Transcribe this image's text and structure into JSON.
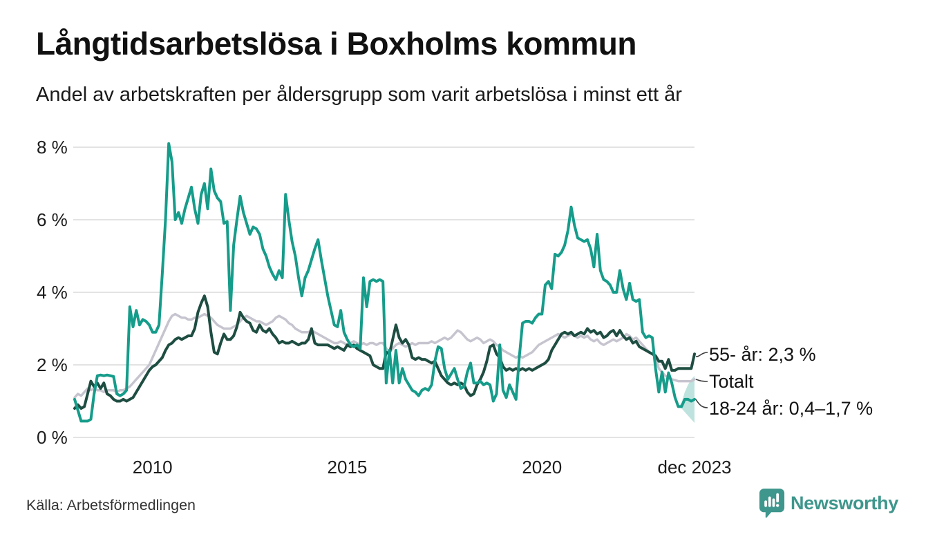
{
  "chart_data": {
    "type": "line",
    "title": "Långtidsarbetslösa i Boxholms kommun",
    "subtitle": "Andel av arbetskraften per åldersgrupp som varit arbetslösa i minst ett år",
    "unit": "%",
    "frequency": "monthly",
    "x_start_year": 2008,
    "x_end_label": "dec 2023",
    "ylim": [
      0,
      8.4
    ],
    "grid": true,
    "grid_color": "#e3e3e3",
    "y_ticks": [
      {
        "label": "8 %",
        "value": 8
      },
      {
        "label": "6 %",
        "value": 6
      },
      {
        "label": "4 %",
        "value": 4
      },
      {
        "label": "2 %",
        "value": 2
      },
      {
        "label": "0 %",
        "value": 0
      }
    ],
    "x_ticks": [
      {
        "label": "2010",
        "year": 2010
      },
      {
        "label": "2015",
        "year": 2015
      },
      {
        "label": "2020",
        "year": 2020
      },
      {
        "label": "dec 2023",
        "year": 2023.917
      }
    ],
    "series": [
      {
        "name": "Totalt",
        "color": "#C6C4CE",
        "width": 3.5,
        "values": [
          1.1,
          1.2,
          1.15,
          1.25,
          1.35,
          1.3,
          1.35,
          1.3,
          1.3,
          1.25,
          1.3,
          1.3,
          1.3,
          1.25,
          1.3,
          1.3,
          1.35,
          1.4,
          1.5,
          1.6,
          1.7,
          1.8,
          1.9,
          2.0,
          2.2,
          2.4,
          2.6,
          2.8,
          3.0,
          3.2,
          3.35,
          3.4,
          3.35,
          3.3,
          3.3,
          3.25,
          3.25,
          3.3,
          3.3,
          3.35,
          3.4,
          3.35,
          3.3,
          3.2,
          3.1,
          3.05,
          3.0,
          3.0,
          3.0,
          3.05,
          3.1,
          3.2,
          3.3,
          3.35,
          3.3,
          3.25,
          3.2,
          3.2,
          3.15,
          3.1,
          3.15,
          3.2,
          3.3,
          3.35,
          3.3,
          3.25,
          3.15,
          3.1,
          3.0,
          2.95,
          2.9,
          2.9,
          2.9,
          2.95,
          2.9,
          2.85,
          2.8,
          2.75,
          2.7,
          2.65,
          2.6,
          2.6,
          2.65,
          2.6,
          2.55,
          2.6,
          2.65,
          2.6,
          2.55,
          2.6,
          2.55,
          2.6,
          2.6,
          2.55,
          2.6,
          2.6,
          2.45,
          2.35,
          2.45,
          2.55,
          2.6,
          2.55,
          2.5,
          2.55,
          2.6,
          2.55,
          2.6,
          2.6,
          2.6,
          2.6,
          2.65,
          2.6,
          2.65,
          2.7,
          2.75,
          2.7,
          2.75,
          2.85,
          2.95,
          2.9,
          2.8,
          2.7,
          2.65,
          2.7,
          2.75,
          2.7,
          2.6,
          2.65,
          2.7,
          2.65,
          2.55,
          2.5,
          2.4,
          2.35,
          2.3,
          2.25,
          2.2,
          2.25,
          2.2,
          2.25,
          2.3,
          2.35,
          2.45,
          2.55,
          2.6,
          2.65,
          2.7,
          2.75,
          2.8,
          2.85,
          2.8,
          2.75,
          2.8,
          2.85,
          2.8,
          2.75,
          2.8,
          2.75,
          2.8,
          2.7,
          2.65,
          2.7,
          2.6,
          2.55,
          2.6,
          2.65,
          2.7,
          2.65,
          2.7,
          2.75,
          2.85,
          2.8,
          2.7,
          2.75,
          2.65,
          2.55,
          2.45,
          2.35,
          2.3,
          2.2,
          1.9,
          1.8,
          1.7,
          1.65,
          1.6,
          1.58,
          1.55,
          1.55,
          1.55,
          1.55,
          1.55,
          1.6
        ]
      },
      {
        "name": "55- år",
        "color": "#1E4D41",
        "width": 4,
        "values": [
          0.8,
          0.9,
          0.8,
          0.85,
          1.2,
          1.55,
          1.4,
          1.5,
          1.35,
          1.5,
          1.2,
          1.15,
          1.05,
          1.0,
          1.0,
          1.05,
          1.0,
          1.05,
          1.1,
          1.25,
          1.4,
          1.55,
          1.7,
          1.85,
          1.95,
          2.0,
          2.1,
          2.2,
          2.4,
          2.55,
          2.6,
          2.7,
          2.75,
          2.7,
          2.75,
          2.8,
          2.8,
          3.0,
          3.45,
          3.7,
          3.9,
          3.6,
          2.9,
          2.35,
          2.3,
          2.6,
          2.85,
          2.7,
          2.7,
          2.8,
          3.05,
          3.45,
          3.3,
          3.2,
          3.15,
          2.95,
          2.9,
          3.1,
          2.95,
          2.9,
          3.0,
          2.85,
          2.75,
          2.6,
          2.65,
          2.6,
          2.6,
          2.65,
          2.6,
          2.55,
          2.6,
          2.6,
          2.7,
          3.0,
          2.6,
          2.55,
          2.55,
          2.55,
          2.55,
          2.5,
          2.45,
          2.5,
          2.45,
          2.4,
          2.55,
          2.5,
          2.55,
          2.45,
          2.4,
          2.35,
          2.3,
          2.25,
          2.0,
          1.95,
          1.9,
          1.9,
          2.35,
          2.3,
          2.7,
          3.1,
          2.75,
          2.6,
          2.7,
          2.55,
          2.2,
          2.15,
          2.2,
          2.15,
          2.15,
          2.1,
          2.05,
          2.1,
          1.9,
          1.7,
          1.6,
          1.5,
          1.45,
          1.5,
          1.45,
          1.5,
          1.45,
          1.25,
          1.15,
          1.2,
          1.45,
          1.6,
          1.8,
          2.1,
          2.5,
          2.55,
          2.3,
          2.2,
          1.95,
          1.85,
          1.9,
          1.85,
          1.9,
          1.85,
          1.9,
          1.85,
          1.9,
          1.85,
          1.9,
          1.95,
          2.0,
          2.05,
          2.15,
          2.4,
          2.55,
          2.7,
          2.85,
          2.9,
          2.85,
          2.9,
          2.8,
          2.85,
          2.9,
          2.85,
          3.0,
          2.9,
          2.95,
          2.85,
          2.9,
          2.75,
          2.8,
          2.9,
          2.95,
          2.8,
          2.95,
          2.8,
          2.7,
          2.75,
          2.6,
          2.65,
          2.5,
          2.45,
          2.4,
          2.35,
          2.3,
          2.25,
          2.1,
          2.1,
          1.9,
          2.15,
          1.85,
          1.85,
          1.9,
          1.9,
          1.9,
          1.9,
          1.9,
          2.3
        ]
      },
      {
        "name": "18-24 år",
        "color": "#169C8A",
        "width": 4,
        "values": [
          1.05,
          0.75,
          0.45,
          0.45,
          0.45,
          0.5,
          1.2,
          1.7,
          1.72,
          1.7,
          1.72,
          1.7,
          1.68,
          1.2,
          1.15,
          1.2,
          1.3,
          3.6,
          3.05,
          3.5,
          3.1,
          3.25,
          3.2,
          3.1,
          2.9,
          2.9,
          3.1,
          4.5,
          6.0,
          8.1,
          7.6,
          6.0,
          6.2,
          5.9,
          6.3,
          6.6,
          6.9,
          6.3,
          5.9,
          6.7,
          7.0,
          6.3,
          7.4,
          6.8,
          6.6,
          6.5,
          5.9,
          5.95,
          3.5,
          5.3,
          6.0,
          6.65,
          6.2,
          5.9,
          5.6,
          5.8,
          5.75,
          5.6,
          5.2,
          5.0,
          4.7,
          4.5,
          4.35,
          4.6,
          4.4,
          6.7,
          6.0,
          5.4,
          5.0,
          4.4,
          3.9,
          4.4,
          4.6,
          4.9,
          5.2,
          5.45,
          4.9,
          4.4,
          3.9,
          3.5,
          3.1,
          3.05,
          3.5,
          2.9,
          2.7,
          2.55,
          2.5,
          2.55,
          2.45,
          4.4,
          3.6,
          4.3,
          4.35,
          4.3,
          4.35,
          4.3,
          1.5,
          2.4,
          1.5,
          2.4,
          1.5,
          1.9,
          1.6,
          1.45,
          1.3,
          1.25,
          1.15,
          1.3,
          1.35,
          1.3,
          1.45,
          2.1,
          2.5,
          2.45,
          1.9,
          1.6,
          1.75,
          1.9,
          1.6,
          1.35,
          1.4,
          1.8,
          2.05,
          1.5,
          1.5,
          1.55,
          1.45,
          1.5,
          1.45,
          1.0,
          1.2,
          2.55,
          1.3,
          1.1,
          1.45,
          1.25,
          1.05,
          2.2,
          3.15,
          3.2,
          3.2,
          3.15,
          3.3,
          3.4,
          3.4,
          4.2,
          4.3,
          4.1,
          5.05,
          5.0,
          5.1,
          5.3,
          5.7,
          6.35,
          5.85,
          5.5,
          5.45,
          5.4,
          5.45,
          5.2,
          4.7,
          5.6,
          4.6,
          4.35,
          4.3,
          4.2,
          4.0,
          4.0,
          4.6,
          4.1,
          3.8,
          4.25,
          3.8,
          3.75,
          3.8,
          2.9,
          2.75,
          2.8,
          2.75,
          1.9,
          1.25,
          1.8,
          1.25,
          1.78,
          1.5,
          1.1,
          0.85,
          0.85,
          1.05,
          1.05,
          1.0,
          1.05
        ]
      }
    ],
    "uncertainty_band": {
      "series": "18-24 år",
      "color": "#169C8A",
      "opacity": 0.28,
      "start_index": 186,
      "lower": [
        0.85,
        0.8,
        0.7,
        0.6,
        0.5,
        0.4
      ],
      "upper": [
        0.85,
        0.95,
        1.25,
        1.45,
        1.6,
        1.7
      ]
    },
    "annotations": [
      {
        "id": "55",
        "label": "55- år: 2,3 %"
      },
      {
        "id": "totalt",
        "label": "Totalt"
      },
      {
        "id": "1824",
        "label": "18-24 år: 0,4–1,7 %"
      }
    ],
    "legend_position": "right-of-line-ends"
  },
  "footer": {
    "source": "Källa: Arbetsförmedlingen",
    "brand": "Newsworthy",
    "brand_color": "#3E968C"
  }
}
